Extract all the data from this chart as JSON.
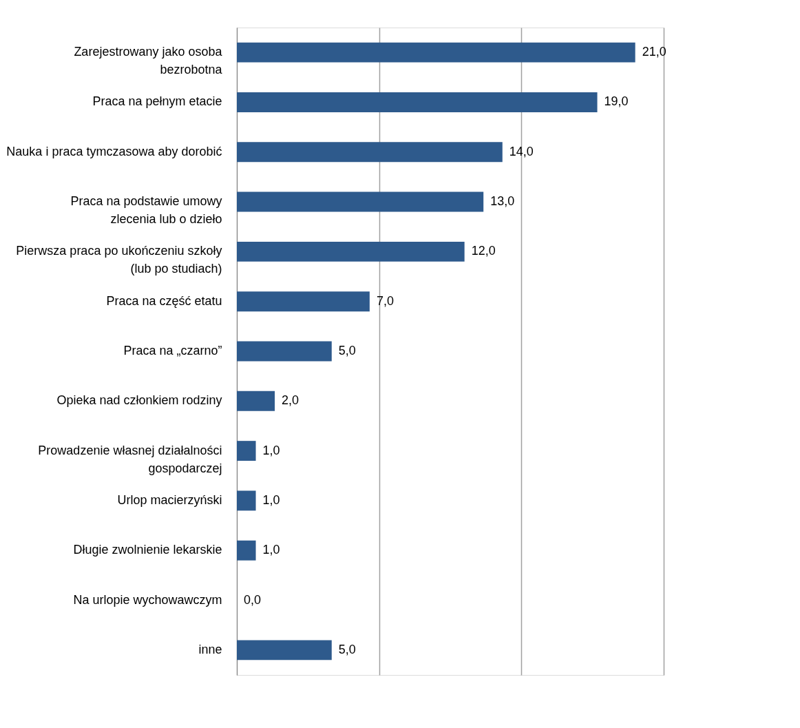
{
  "chart_data": {
    "type": "bar",
    "orientation": "horizontal",
    "categories": [
      "Zarejestrowany jako osoba\nbezrobotna",
      "Praca na pełnym etacie",
      "Nauka i praca tymczasowa aby dorobić",
      "Praca na podstawie umowy\nzlecenia lub o dzieło",
      "Pierwsza praca po ukończeniu szkoły\n(lub po studiach)",
      "Praca na część etatu",
      "Praca na „czarno”",
      "Opieka nad członkiem rodziny",
      "Prowadzenie własnej działalności\ngospodarczej",
      "Urlop macierzyński",
      "Długie zwolnienie lekarskie",
      "Na urlopie wychowawczym",
      "inne"
    ],
    "values": [
      21,
      19,
      14,
      13,
      12,
      7,
      5,
      2,
      1,
      1,
      1,
      0,
      5
    ],
    "value_labels": [
      "21,0",
      "19,0",
      "14,0",
      "13,0",
      "12,0",
      "7,0",
      "5,0",
      "2,0",
      "1,0",
      "1,0",
      "1,0",
      "0,0",
      "5,0"
    ],
    "color": "#2e5a8c",
    "xlim": [
      0,
      22.5
    ],
    "xticks": [
      0,
      {
        "value": 7.5,
        "label": null
      },
      {
        "value": 15,
        "label": null
      },
      {
        "value": 22.5,
        "label": null
      }
    ],
    "grid": "x",
    "tick_labels": "y"
  }
}
